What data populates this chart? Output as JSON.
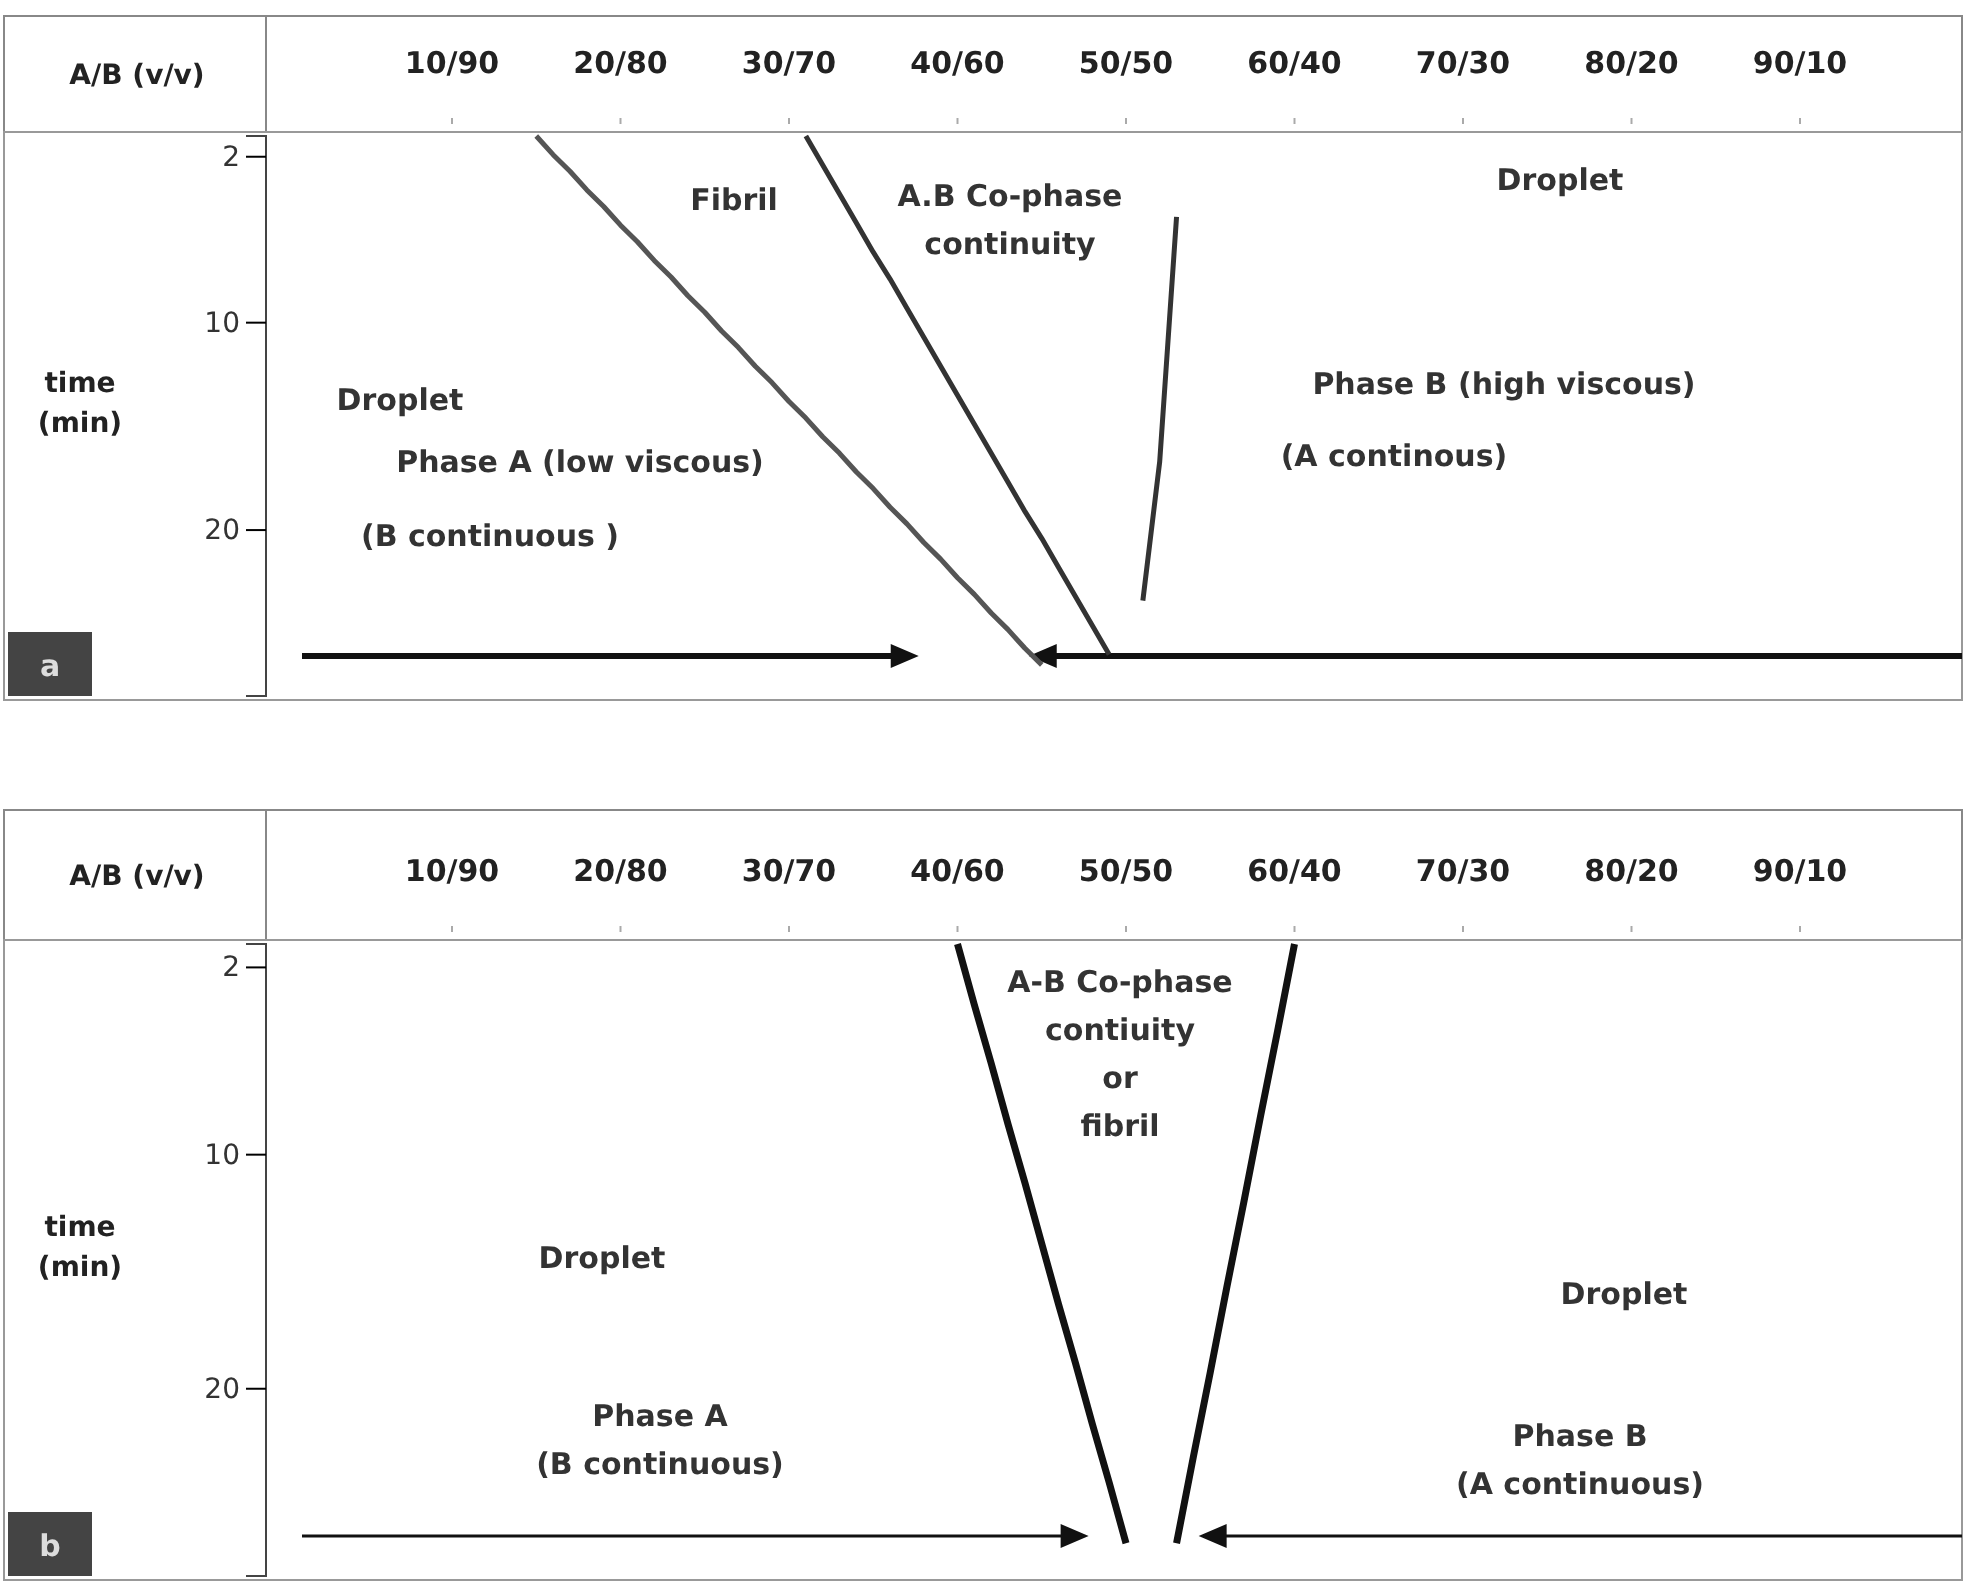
{
  "chart_data": [
    {
      "type": "line",
      "title": "a",
      "xlabel": "A/B (v/v)",
      "ylabel": "time\n(min)",
      "ylim": [
        28,
        1
      ],
      "categories": [
        null,
        null,
        null,
        null,
        null,
        null,
        null,
        null,
        null,
        null,
        "10/90",
        null,
        null,
        null,
        null,
        null,
        null,
        null,
        null,
        null,
        "20/80",
        null,
        null,
        null,
        null,
        null,
        null,
        null,
        null,
        null,
        "30/70",
        null,
        null,
        null,
        null,
        null,
        null,
        null,
        null,
        null,
        "40/60",
        null,
        null,
        null,
        null,
        null,
        null,
        null,
        null,
        null,
        "50/50",
        null,
        null,
        null,
        null,
        null,
        null,
        null,
        null,
        null,
        "60/40",
        null,
        null,
        null,
        null,
        null,
        null,
        null,
        null,
        null,
        "70/30",
        null,
        null,
        null,
        null,
        null,
        null,
        null,
        null,
        null,
        "80/20",
        null,
        null,
        null,
        null,
        null,
        null,
        null,
        null,
        null,
        "90/10",
        null,
        null,
        null,
        null,
        null,
        null,
        null,
        null,
        null,
        null
      ],
      "yticks": [
        2,
        10,
        20
      ],
      "marker": "none",
      "line_style": "solid",
      "grid": false,
      "series": [
        {
          "color": "#555555",
          "values": [
            null,
            null,
            null,
            null,
            null,
            null,
            null,
            null,
            null,
            null,
            null,
            null,
            null,
            null,
            null,
            1,
            1.9,
            2.7,
            3.6,
            4.4,
            5.3,
            6.1,
            7,
            7.8,
            8.7,
            9.5,
            10.4,
            11.2,
            12.1,
            12.9,
            13.8,
            14.6,
            15.5,
            16.3,
            17.2,
            18,
            18.9,
            19.7,
            20.6,
            21.4,
            22.3,
            23.1,
            24,
            24.8,
            25.7,
            26.5,
            null,
            null,
            null,
            null,
            null,
            null,
            null,
            null,
            null,
            null,
            null,
            null,
            null,
            null,
            null,
            null,
            null,
            null,
            null,
            null,
            null,
            null,
            null,
            null,
            null,
            null,
            null,
            null,
            null,
            null,
            null,
            null,
            null,
            null,
            null,
            null,
            null,
            null,
            null,
            null,
            null,
            null,
            null,
            null,
            null,
            null,
            null,
            null,
            null,
            null,
            null,
            null,
            null,
            null,
            null
          ]
        },
        {
          "color": "#333333",
          "values": [
            null,
            null,
            null,
            null,
            null,
            null,
            null,
            null,
            null,
            null,
            null,
            null,
            null,
            null,
            null,
            null,
            null,
            null,
            null,
            null,
            null,
            null,
            null,
            null,
            null,
            null,
            null,
            null,
            null,
            null,
            null,
            1,
            2.4,
            3.8,
            5.2,
            6.6,
            7.9,
            9.3,
            10.7,
            12.1,
            13.5,
            14.9,
            16.3,
            17.7,
            19.1,
            20.4,
            21.8,
            23.2,
            24.6,
            26,
            null,
            null,
            null,
            null,
            null,
            null,
            null,
            null,
            null,
            null,
            null,
            null,
            null,
            null,
            null,
            null,
            null,
            null,
            null,
            null,
            null,
            null,
            null,
            null,
            null,
            null,
            null,
            null,
            null,
            null,
            null,
            null,
            null,
            null,
            null,
            null,
            null,
            null,
            null,
            null,
            null,
            null,
            null,
            null,
            null,
            null,
            null,
            null,
            null,
            null,
            null
          ]
        },
        {
          "color": "#333333",
          "values": [
            null,
            null,
            null,
            null,
            null,
            null,
            null,
            null,
            null,
            null,
            null,
            null,
            null,
            null,
            null,
            null,
            null,
            null,
            null,
            null,
            null,
            null,
            null,
            null,
            null,
            null,
            null,
            null,
            null,
            null,
            null,
            null,
            null,
            null,
            null,
            null,
            null,
            null,
            null,
            null,
            null,
            null,
            null,
            null,
            null,
            null,
            null,
            null,
            null,
            null,
            null,
            23.4,
            16.7,
            4.9,
            null,
            null,
            null,
            null,
            null,
            null,
            null,
            null,
            null,
            null,
            null,
            null,
            null,
            null,
            null,
            null,
            null,
            null,
            null,
            null,
            null,
            null,
            null,
            null,
            null,
            null,
            null,
            null,
            null,
            null,
            null,
            null,
            null,
            null,
            null,
            null,
            null,
            null,
            null,
            null,
            null,
            null,
            null,
            null,
            null,
            null,
            null
          ]
        }
      ],
      "annotations": [
        "Fibril",
        "A.B Co-phase\ncontinuity",
        "Droplet",
        "Droplet",
        "Phase A (low viscous)",
        "(B continuous )",
        "Phase B (high viscous)",
        "(A continous)"
      ]
    },
    {
      "type": "line",
      "title": "b",
      "xlabel": "A/B (v/v)",
      "ylabel": "time\n(min)",
      "ylim": [
        28,
        1
      ],
      "categories": [
        null,
        null,
        null,
        null,
        null,
        null,
        null,
        null,
        null,
        null,
        "10/90",
        null,
        null,
        null,
        null,
        null,
        null,
        null,
        null,
        null,
        "20/80",
        null,
        null,
        null,
        null,
        null,
        null,
        null,
        null,
        null,
        "30/70",
        null,
        null,
        null,
        null,
        null,
        null,
        null,
        null,
        null,
        "40/60",
        null,
        null,
        null,
        null,
        null,
        null,
        null,
        null,
        null,
        "50/50",
        null,
        null,
        null,
        null,
        null,
        null,
        null,
        null,
        null,
        "60/40",
        null,
        null,
        null,
        null,
        null,
        null,
        null,
        null,
        null,
        "70/30",
        null,
        null,
        null,
        null,
        null,
        null,
        null,
        null,
        null,
        "80/20",
        null,
        null,
        null,
        null,
        null,
        null,
        null,
        null,
        null,
        "90/10",
        null,
        null,
        null,
        null,
        null,
        null,
        null,
        null,
        null,
        null
      ],
      "yticks": [
        2,
        10,
        20
      ],
      "marker": "none",
      "line_style": "solid",
      "grid": false,
      "series": [
        {
          "color": "#111111",
          "values": [
            null,
            null,
            null,
            null,
            null,
            null,
            null,
            null,
            null,
            null,
            null,
            null,
            null,
            null,
            null,
            null,
            null,
            null,
            null,
            null,
            null,
            null,
            null,
            null,
            null,
            null,
            null,
            null,
            null,
            null,
            null,
            null,
            null,
            null,
            null,
            null,
            null,
            null,
            null,
            null,
            1,
            3.6,
            6.1,
            8.7,
            11.2,
            13.8,
            16.4,
            18.9,
            21.5,
            24,
            26.6,
            null,
            null,
            null,
            null,
            null,
            null,
            null,
            null,
            null,
            null,
            null,
            null,
            null,
            null,
            null,
            null,
            null,
            null,
            null,
            null,
            null,
            null,
            null,
            null,
            null,
            null,
            null,
            null,
            null,
            null,
            null,
            null,
            null,
            null,
            null,
            null,
            null,
            null,
            null,
            null,
            null,
            null,
            null,
            null,
            null,
            null,
            null,
            null,
            null,
            null
          ]
        },
        {
          "color": "#111111",
          "values": [
            null,
            null,
            null,
            null,
            null,
            null,
            null,
            null,
            null,
            null,
            null,
            null,
            null,
            null,
            null,
            null,
            null,
            null,
            null,
            null,
            null,
            null,
            null,
            null,
            null,
            null,
            null,
            null,
            null,
            null,
            null,
            null,
            null,
            null,
            null,
            null,
            null,
            null,
            null,
            null,
            null,
            null,
            null,
            null,
            null,
            null,
            null,
            null,
            null,
            null,
            null,
            null,
            null,
            26.6,
            22.9,
            19.3,
            15.6,
            12,
            8.3,
            4.7,
            1,
            null,
            null,
            null,
            null,
            null,
            null,
            null,
            null,
            null,
            null,
            null,
            null,
            null,
            null,
            null,
            null,
            null,
            null,
            null,
            null,
            null,
            null,
            null,
            null,
            null,
            null,
            null,
            null,
            null,
            null,
            null,
            null,
            null,
            null,
            null,
            null,
            null,
            null,
            null,
            null
          ]
        }
      ],
      "annotations": [
        "A-B Co-phase\ncontiuity\nor\nfibril",
        "Droplet",
        "Droplet",
        "Phase A\n(B continuous)",
        "Phase B\n(A continuous)"
      ]
    }
  ]
}
